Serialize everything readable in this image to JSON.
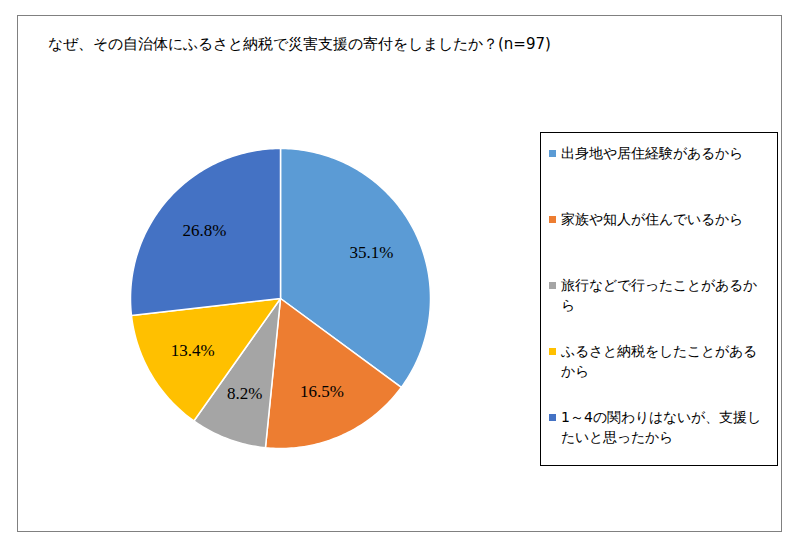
{
  "chart_data": {
    "type": "pie",
    "title": "なぜ、その自治体にふるさと納税で災害支援の寄付をしましたか？(n=97)",
    "categories": [
      "出身地や居住経験があるから",
      "家族や知人が住んでいるから",
      "旅行などで行ったことがあるから",
      "ふるさと納税をしたことがあるから",
      "1～4の関わりはないが、支援したいと思ったから"
    ],
    "values": [
      35.1,
      16.5,
      8.2,
      13.4,
      26.8
    ],
    "value_labels": [
      "35.1%",
      "16.5%",
      "8.2%",
      "13.4%",
      "26.8%"
    ],
    "colors": [
      "#5b9bd5",
      "#ed7d31",
      "#a5a5a5",
      "#ffc000",
      "#4472c4"
    ],
    "legend": "right",
    "data_labels": true,
    "tick_labels": false
  }
}
